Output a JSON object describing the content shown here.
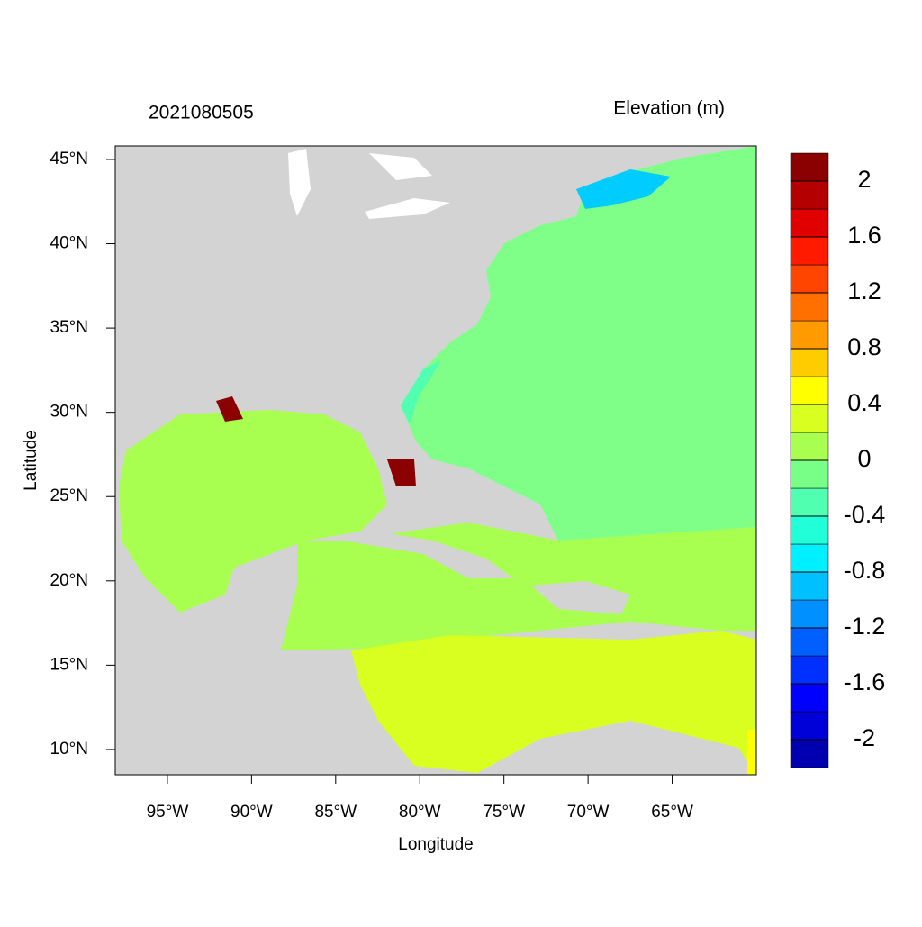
{
  "map": {
    "title_left": "2021080505",
    "title_right": "Elevation (m)",
    "xlabel": "Longitude",
    "ylabel": "Latitude",
    "xlim": [
      -98.1,
      -60
    ],
    "ylim": [
      8.5,
      45.8
    ],
    "xticks": [
      {
        "value": -95,
        "label": "95°W"
      },
      {
        "value": -90,
        "label": "90°W"
      },
      {
        "value": -85,
        "label": "85°W"
      },
      {
        "value": -80,
        "label": "80°W"
      },
      {
        "value": -75,
        "label": "75°W"
      },
      {
        "value": -70,
        "label": "70°W"
      },
      {
        "value": -65,
        "label": "65°W"
      }
    ],
    "yticks": [
      {
        "value": 10,
        "label": "10°N"
      },
      {
        "value": 15,
        "label": "15°N"
      },
      {
        "value": 20,
        "label": "20°N"
      },
      {
        "value": 25,
        "label": "25°N"
      },
      {
        "value": 30,
        "label": "30°N"
      },
      {
        "value": 35,
        "label": "35°N"
      },
      {
        "value": 40,
        "label": "40°N"
      },
      {
        "value": 45,
        "label": "45°N"
      }
    ],
    "colorbar": {
      "clim": [
        -2.2,
        2.2
      ],
      "colors": [
        "#0000b0",
        "#0000d8",
        "#0000ff",
        "#0030ff",
        "#0060ff",
        "#0090ff",
        "#00c0ff",
        "#00f0ff",
        "#20ffd8",
        "#50ffb0",
        "#78ff88",
        "#a8ff50",
        "#d8ff20",
        "#ffff00",
        "#ffcc00",
        "#ff9a00",
        "#ff7000",
        "#ff4500",
        "#ff1a00",
        "#e00000",
        "#b40000",
        "#8b0000"
      ],
      "ticks": [
        -2,
        -1.6,
        -1.2,
        -0.8,
        -0.4,
        0,
        0.4,
        0.8,
        1.2,
        1.6,
        2
      ]
    }
  }
}
